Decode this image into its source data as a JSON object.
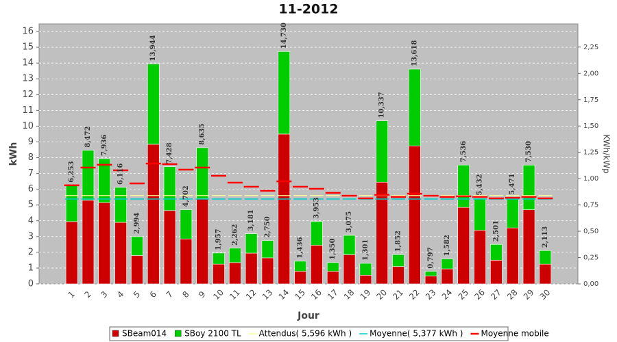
{
  "chart_data": {
    "type": "bar",
    "title": "11-2012",
    "x_label": "Jour",
    "y_label": "kWh",
    "y2_label": "KWh/kWp",
    "categories": [
      "1",
      "2",
      "3",
      "4",
      "5",
      "6",
      "7",
      "8",
      "9",
      "10",
      "11",
      "12",
      "13",
      "14",
      "15",
      "16",
      "17",
      "18",
      "19",
      "20",
      "21",
      "22",
      "23",
      "24",
      "25",
      "26",
      "27",
      "28",
      "29",
      "30"
    ],
    "series": [
      {
        "name": "SBeam014",
        "color": "#cc0000",
        "values": [
          3.95,
          5.3,
          5.15,
          3.9,
          1.8,
          8.85,
          4.65,
          2.85,
          5.4,
          1.25,
          1.35,
          1.95,
          1.65,
          9.5,
          0.8,
          2.45,
          0.8,
          1.85,
          0.55,
          6.45,
          1.1,
          8.75,
          0.5,
          0.95,
          4.85,
          3.4,
          1.5,
          3.55,
          4.7,
          1.25
        ]
      },
      {
        "name": "SBoy 2100 TL",
        "color": "#00cc00",
        "values": [
          2.303,
          3.172,
          2.786,
          2.216,
          1.194,
          5.094,
          2.778,
          1.852,
          3.235,
          0.707,
          0.912,
          1.231,
          1.1,
          5.23,
          0.636,
          1.503,
          0.55,
          1.225,
          0.751,
          3.887,
          0.752,
          4.868,
          0.297,
          0.632,
          2.686,
          2.032,
          1.001,
          1.921,
          2.83,
          0.863
        ]
      }
    ],
    "totals": [
      6.253,
      8.472,
      7.936,
      6.116,
      2.994,
      13.944,
      7.428,
      4.702,
      8.635,
      1.957,
      2.262,
      3.181,
      2.75,
      14.73,
      1.436,
      3.953,
      1.35,
      3.075,
      1.301,
      10.337,
      1.852,
      13.618,
      0.797,
      1.582,
      7.536,
      5.432,
      2.501,
      5.471,
      7.53,
      2.113
    ],
    "total_labels": [
      "6,253",
      "8,472",
      "7,936",
      "6,116",
      "2,994",
      "13,944",
      "7,428",
      "4,702",
      "8,635",
      "1,957",
      "2,262",
      "3,181",
      "2,750",
      "14,730",
      "1,436",
      "3,953",
      "1,350",
      "3,075",
      "1,301",
      "10,337",
      "1,852",
      "13,618",
      "0,797",
      "1,582",
      "7,536",
      "5,432",
      "2,501",
      "5,471",
      "7,530",
      "2,113"
    ],
    "lines": [
      {
        "name": "Attendus( 5,596 kWh )",
        "color": "#ffff99",
        "value": 5.596
      },
      {
        "name": "Moyenne( 5,377 kWh )",
        "color": "#00cccc",
        "value": 5.377
      }
    ],
    "moving_average": {
      "name": "Moyenne mobile",
      "color": "#ff0000",
      "values": [
        6.25,
        7.37,
        7.55,
        7.2,
        6.37,
        7.63,
        7.59,
        7.24,
        7.37,
        6.85,
        6.42,
        6.16,
        5.9,
        6.5,
        6.16,
        6.03,
        5.77,
        5.59,
        5.42,
        5.64,
        5.51,
        5.72,
        5.59,
        5.51,
        5.55,
        5.51,
        5.42,
        5.46,
        5.51,
        5.42
      ]
    },
    "ylim": [
      0,
      16.48
    ],
    "yticks": [
      0,
      1,
      2,
      3,
      4,
      5,
      6,
      7,
      8,
      9,
      10,
      11,
      12,
      13,
      14,
      15,
      16
    ],
    "y2lim": [
      0,
      2.47
    ],
    "y2ticks": [
      {
        "value": 0,
        "label": "0,00"
      },
      {
        "value": 0.25,
        "label": "0,25"
      },
      {
        "value": 0.5,
        "label": "0,50"
      },
      {
        "value": 0.75,
        "label": "0,75"
      },
      {
        "value": 1,
        "label": "1,00"
      },
      {
        "value": 1.25,
        "label": "1,25"
      },
      {
        "value": 1.5,
        "label": "1,50"
      },
      {
        "value": 1.75,
        "label": "1,75"
      },
      {
        "value": 2,
        "label": "2,00"
      },
      {
        "value": 2.25,
        "label": "2,25"
      }
    ],
    "grid": true
  }
}
